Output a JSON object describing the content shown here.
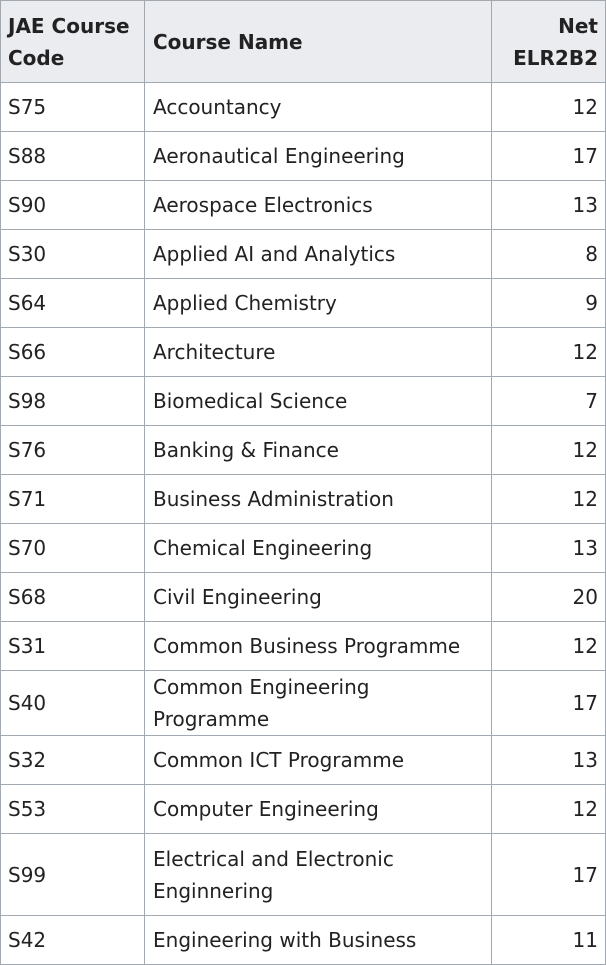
{
  "table": {
    "headers": {
      "code": "JAE Course Code",
      "name": "Course Name",
      "value": "Net ELR2B2"
    },
    "rows": [
      {
        "code": "S75",
        "name": "Accountancy",
        "value": "12"
      },
      {
        "code": "S88",
        "name": "Aeronautical Engineering",
        "value": "17"
      },
      {
        "code": "S90",
        "name": "Aerospace Electronics",
        "value": "13"
      },
      {
        "code": "S30",
        "name": "Applied AI and Analytics",
        "value": "8"
      },
      {
        "code": "S64",
        "name": "Applied Chemistry",
        "value": "9"
      },
      {
        "code": "S66",
        "name": "Architecture",
        "value": "12"
      },
      {
        "code": "S98",
        "name": "Biomedical Science",
        "value": "7"
      },
      {
        "code": "S76",
        "name": "Banking & Finance",
        "value": "12"
      },
      {
        "code": "S71",
        "name": "Business Administration",
        "value": "12"
      },
      {
        "code": "S70",
        "name": "Chemical Engineering",
        "value": "13"
      },
      {
        "code": "S68",
        "name": "Civil Engineering",
        "value": "20"
      },
      {
        "code": "S31",
        "name": "Common Business Programme",
        "value": "12"
      },
      {
        "code": "S40",
        "name": "Common Engineering Programme",
        "value": "17"
      },
      {
        "code": "S32",
        "name": "Common ICT Programme",
        "value": "13"
      },
      {
        "code": "S53",
        "name": "Computer Engineering",
        "value": "12"
      },
      {
        "code": "S99",
        "name": "Electrical and Electronic Enginnering",
        "value": "17"
      },
      {
        "code": "S42",
        "name": "Engineering with Business",
        "value": "11"
      }
    ]
  }
}
